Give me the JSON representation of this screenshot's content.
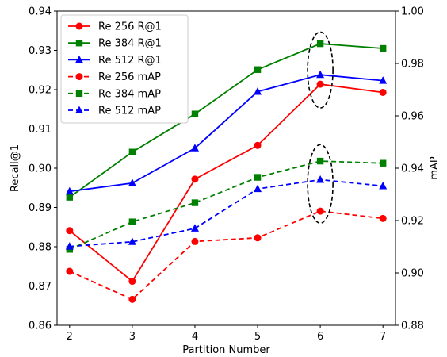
{
  "chart_data": {
    "type": "line",
    "x": [
      2,
      3,
      4,
      5,
      6,
      7
    ],
    "xlabel": "Partition Number",
    "ylabel_left": "Recall@1",
    "ylabel_right": "mAP",
    "ylim_left": [
      0.86,
      0.94
    ],
    "ylim_right": [
      0.88,
      1.0
    ],
    "xlim": [
      1.8,
      7.2
    ],
    "yticks_left": [
      "0.86",
      "0.87",
      "0.88",
      "0.89",
      "0.90",
      "0.91",
      "0.92",
      "0.93",
      "0.94"
    ],
    "yticks_right": [
      "0.88",
      "0.90",
      "0.92",
      "0.94",
      "0.96",
      "0.98",
      "1.00"
    ],
    "xticks": [
      "2",
      "3",
      "4",
      "5",
      "6",
      "7"
    ],
    "grid": false,
    "legend_placement": "top-left",
    "series": [
      {
        "name": "Re 256 R@1",
        "axis": "left",
        "color": "#ff0000",
        "marker": "circle",
        "dash": "solid",
        "values": [
          0.8841,
          0.8712,
          0.8972,
          0.9058,
          0.9214,
          0.9193
        ]
      },
      {
        "name": "Re 384 R@1",
        "axis": "left",
        "color": "#008000",
        "marker": "square",
        "dash": "solid",
        "values": [
          0.8926,
          0.9041,
          0.9138,
          0.9251,
          0.9317,
          0.9305
        ]
      },
      {
        "name": "Re 512 R@1",
        "axis": "left",
        "color": "#0000ff",
        "marker": "triangle",
        "dash": "solid",
        "values": [
          0.8941,
          0.8962,
          0.9051,
          0.9195,
          0.9238,
          0.9223
        ]
      },
      {
        "name": "Re 256 mAP",
        "axis": "right",
        "color": "#ff0000",
        "marker": "circle",
        "dash": "dashed",
        "values": [
          0.9006,
          0.8899,
          0.912,
          0.9134,
          0.9236,
          0.9208
        ]
      },
      {
        "name": "Re 384 mAP",
        "axis": "right",
        "color": "#008000",
        "marker": "square",
        "dash": "dashed",
        "values": [
          0.909,
          0.9195,
          0.9268,
          0.9365,
          0.9427,
          0.9419
        ]
      },
      {
        "name": "Re 512 mAP",
        "axis": "right",
        "color": "#0000ff",
        "marker": "triangle",
        "dash": "dashed",
        "values": [
          0.9101,
          0.9119,
          0.917,
          0.9321,
          0.9356,
          0.9332
        ]
      }
    ],
    "annotations": [
      {
        "type": "dashed-ellipse",
        "x": 6,
        "axis": "right",
        "ymin": 0.963,
        "ymax": 0.992
      },
      {
        "type": "dashed-ellipse",
        "x": 6,
        "axis": "right",
        "ymin": 0.919,
        "ymax": 0.949
      }
    ]
  }
}
